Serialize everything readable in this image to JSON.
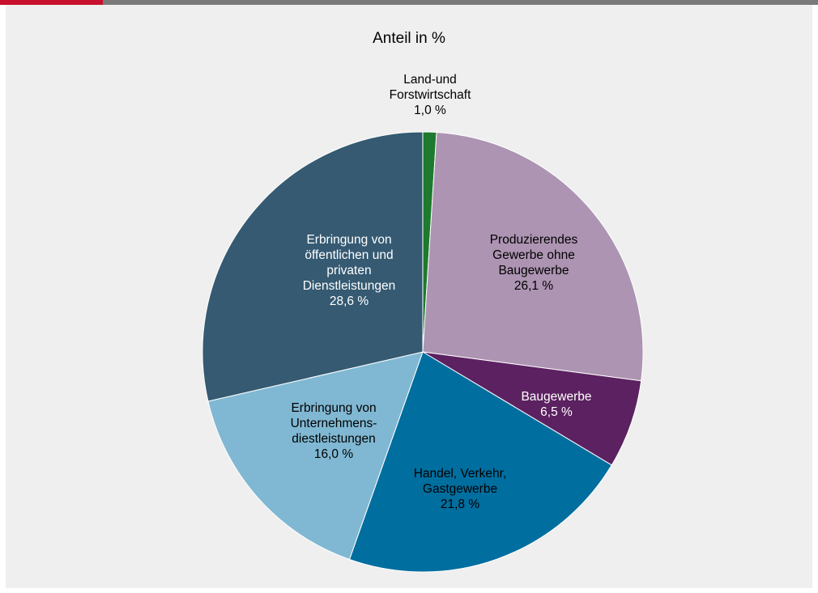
{
  "chart_data": {
    "type": "pie",
    "title": "Anteil in %",
    "slices": [
      {
        "lines": [
          "Land-und",
          "Forstwirtschaft",
          "1,0 %"
        ],
        "value": 1.0,
        "color": "#1e7a2c",
        "label_color": "#000000"
      },
      {
        "lines": [
          "Produzierendes",
          "Gewerbe ohne",
          "Baugewerbe",
          "26,1 %"
        ],
        "value": 26.1,
        "color": "#ad94b2",
        "label_color": "#000000"
      },
      {
        "lines": [
          "Baugewerbe",
          "6,5 %"
        ],
        "value": 6.5,
        "color": "#5b2160",
        "label_color": "#ffffff"
      },
      {
        "lines": [
          "Handel, Verkehr,",
          "Gastgewerbe",
          "21,8 %"
        ],
        "value": 21.8,
        "color": "#006e9f",
        "label_color": "#000000"
      },
      {
        "lines": [
          "Erbringung von",
          "Unternehmens-",
          "diestleistungen",
          "16,0 %"
        ],
        "value": 16.0,
        "color": "#80b8d3",
        "label_color": "#000000"
      },
      {
        "lines": [
          "Erbringung von",
          "öffentlichen und",
          "privaten",
          "Dienstleistungen",
          "28,6 %"
        ],
        "value": 28.6,
        "color": "#355a72",
        "label_color": "#ffffff"
      }
    ]
  },
  "colors": {
    "accent": "#c8102e",
    "header_bar": "#7a7a7a",
    "background": "#eeefee"
  }
}
